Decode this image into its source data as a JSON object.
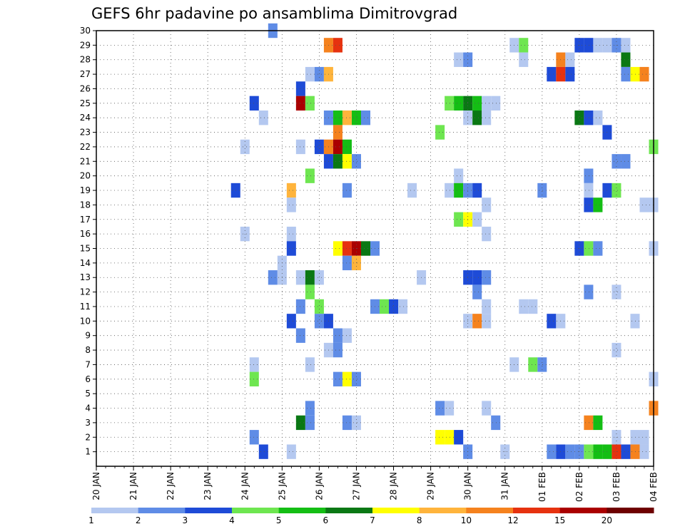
{
  "chart_data": {
    "type": "heatmap",
    "title": "GEFS 6hr padavine po ansamblima Dimitrovgrad",
    "y_tick_labels": [
      "1",
      "2",
      "3",
      "4",
      "5",
      "6",
      "7",
      "8",
      "9",
      "10",
      "11",
      "12",
      "13",
      "14",
      "15",
      "16",
      "17",
      "18",
      "19",
      "20",
      "21",
      "22",
      "23",
      "24",
      "25",
      "26",
      "27",
      "28",
      "29",
      "30"
    ],
    "x_tick_labels": [
      "20 JAN",
      "21 JAN",
      "22 JAN",
      "23 JAN",
      "24 JAN",
      "25 JAN",
      "26 JAN",
      "27 JAN",
      "28 JAN",
      "29 JAN",
      "30 JAN",
      "31 JAN",
      "01 FEB",
      "02 FEB",
      "03 FEB",
      "04 FEB"
    ],
    "x_range_steps": [
      0,
      60
    ],
    "y_range": [
      0,
      30
    ],
    "grid": true,
    "legend_position": "bottom",
    "legend_labels": [
      "1",
      "2",
      "3",
      "4",
      "5",
      "6",
      "7",
      "8",
      "10",
      "12",
      "15",
      "20"
    ],
    "colors": [
      "#b4c8f0",
      "#5f8ce6",
      "#1e4bd7",
      "#6ee650",
      "#14be14",
      "#0a7814",
      "#ffff00",
      "#ffb43c",
      "#f5821e",
      "#e6320f",
      "#aa0000",
      "#6e0000"
    ],
    "cells": [
      [
        19,
        30,
        2
      ],
      [
        25,
        29,
        9
      ],
      [
        26,
        29,
        10
      ],
      [
        45,
        29,
        1
      ],
      [
        46,
        29,
        4
      ],
      [
        52,
        29,
        3
      ],
      [
        53,
        29,
        3
      ],
      [
        54,
        29,
        1
      ],
      [
        55,
        29,
        1
      ],
      [
        56,
        29,
        2
      ],
      [
        57,
        29,
        1
      ],
      [
        39,
        28,
        1
      ],
      [
        40,
        28,
        2
      ],
      [
        46,
        28,
        1
      ],
      [
        50,
        28,
        9
      ],
      [
        51,
        28,
        1
      ],
      [
        57,
        28,
        6
      ],
      [
        23,
        27,
        1
      ],
      [
        24,
        27,
        2
      ],
      [
        25,
        27,
        8
      ],
      [
        49,
        27,
        3
      ],
      [
        50,
        27,
        10
      ],
      [
        51,
        27,
        3
      ],
      [
        57,
        27,
        2
      ],
      [
        58,
        27,
        7
      ],
      [
        59,
        27,
        9
      ],
      [
        22,
        26,
        3
      ],
      [
        17,
        25,
        3
      ],
      [
        22,
        25,
        11
      ],
      [
        23,
        25,
        4
      ],
      [
        38,
        25,
        4
      ],
      [
        39,
        25,
        5
      ],
      [
        40,
        25,
        6
      ],
      [
        41,
        25,
        5
      ],
      [
        42,
        25,
        1
      ],
      [
        43,
        25,
        1
      ],
      [
        18,
        24,
        1
      ],
      [
        25,
        24,
        2
      ],
      [
        26,
        24,
        5
      ],
      [
        27,
        24,
        8
      ],
      [
        28,
        24,
        5
      ],
      [
        29,
        24,
        2
      ],
      [
        40,
        24,
        1
      ],
      [
        41,
        24,
        6
      ],
      [
        42,
        24,
        1
      ],
      [
        52,
        24,
        6
      ],
      [
        53,
        24,
        3
      ],
      [
        54,
        24,
        1
      ],
      [
        26,
        23,
        9
      ],
      [
        37,
        23,
        4
      ],
      [
        55,
        23,
        3
      ],
      [
        16,
        22,
        1
      ],
      [
        22,
        22,
        1
      ],
      [
        24,
        22,
        3
      ],
      [
        25,
        22,
        9
      ],
      [
        26,
        22,
        11
      ],
      [
        27,
        22,
        5
      ],
      [
        60,
        22,
        4
      ],
      [
        25,
        21,
        3
      ],
      [
        26,
        21,
        6
      ],
      [
        27,
        21,
        7
      ],
      [
        28,
        21,
        2
      ],
      [
        56,
        21,
        2
      ],
      [
        57,
        21,
        2
      ],
      [
        23,
        20,
        4
      ],
      [
        39,
        20,
        1
      ],
      [
        53,
        20,
        2
      ],
      [
        15,
        19,
        3
      ],
      [
        21,
        19,
        8
      ],
      [
        27,
        19,
        2
      ],
      [
        34,
        19,
        1
      ],
      [
        38,
        19,
        1
      ],
      [
        39,
        19,
        5
      ],
      [
        40,
        19,
        2
      ],
      [
        41,
        19,
        3
      ],
      [
        48,
        19,
        2
      ],
      [
        53,
        19,
        1
      ],
      [
        55,
        19,
        3
      ],
      [
        56,
        19,
        4
      ],
      [
        21,
        18,
        1
      ],
      [
        42,
        18,
        1
      ],
      [
        53,
        18,
        3
      ],
      [
        54,
        18,
        5
      ],
      [
        59,
        18,
        1
      ],
      [
        60,
        18,
        1
      ],
      [
        39,
        17,
        4
      ],
      [
        40,
        17,
        7
      ],
      [
        41,
        17,
        1
      ],
      [
        16,
        16,
        1
      ],
      [
        21,
        16,
        1
      ],
      [
        42,
        16,
        1
      ],
      [
        21,
        15,
        3
      ],
      [
        26,
        15,
        7
      ],
      [
        27,
        15,
        10
      ],
      [
        28,
        15,
        11
      ],
      [
        29,
        15,
        6
      ],
      [
        30,
        15,
        2
      ],
      [
        52,
        15,
        3
      ],
      [
        53,
        15,
        4
      ],
      [
        54,
        15,
        2
      ],
      [
        60,
        15,
        1
      ],
      [
        20,
        14,
        1
      ],
      [
        27,
        14,
        2
      ],
      [
        28,
        14,
        8
      ],
      [
        19,
        13,
        2
      ],
      [
        20,
        13,
        1
      ],
      [
        22,
        13,
        1
      ],
      [
        23,
        13,
        6
      ],
      [
        24,
        13,
        1
      ],
      [
        35,
        13,
        1
      ],
      [
        40,
        13,
        3
      ],
      [
        41,
        13,
        3
      ],
      [
        42,
        13,
        2
      ],
      [
        23,
        12,
        4
      ],
      [
        41,
        12,
        2
      ],
      [
        53,
        12,
        2
      ],
      [
        56,
        12,
        1
      ],
      [
        22,
        11,
        2
      ],
      [
        24,
        11,
        4
      ],
      [
        30,
        11,
        2
      ],
      [
        31,
        11,
        4
      ],
      [
        32,
        11,
        3
      ],
      [
        33,
        11,
        1
      ],
      [
        42,
        11,
        1
      ],
      [
        46,
        11,
        1
      ],
      [
        47,
        11,
        1
      ],
      [
        21,
        10,
        3
      ],
      [
        24,
        10,
        2
      ],
      [
        25,
        10,
        3
      ],
      [
        40,
        10,
        1
      ],
      [
        41,
        10,
        9
      ],
      [
        42,
        10,
        1
      ],
      [
        49,
        10,
        3
      ],
      [
        50,
        10,
        1
      ],
      [
        58,
        10,
        1
      ],
      [
        22,
        9,
        2
      ],
      [
        26,
        9,
        2
      ],
      [
        27,
        9,
        1
      ],
      [
        25,
        8,
        1
      ],
      [
        26,
        8,
        2
      ],
      [
        56,
        8,
        1
      ],
      [
        17,
        7,
        1
      ],
      [
        23,
        7,
        1
      ],
      [
        45,
        7,
        1
      ],
      [
        47,
        7,
        4
      ],
      [
        48,
        7,
        2
      ],
      [
        17,
        6,
        4
      ],
      [
        26,
        6,
        2
      ],
      [
        27,
        6,
        7
      ],
      [
        28,
        6,
        2
      ],
      [
        60,
        6,
        1
      ],
      [
        23,
        4,
        2
      ],
      [
        37,
        4,
        2
      ],
      [
        38,
        4,
        1
      ],
      [
        42,
        4,
        1
      ],
      [
        60,
        4,
        9
      ],
      [
        22,
        3,
        6
      ],
      [
        23,
        3,
        2
      ],
      [
        27,
        3,
        2
      ],
      [
        28,
        3,
        1
      ],
      [
        43,
        3,
        2
      ],
      [
        53,
        3,
        9
      ],
      [
        54,
        3,
        5
      ],
      [
        17,
        2,
        2
      ],
      [
        37,
        2,
        7
      ],
      [
        38,
        2,
        7
      ],
      [
        39,
        2,
        3
      ],
      [
        56,
        2,
        1
      ],
      [
        58,
        2,
        1
      ],
      [
        59,
        2,
        1
      ],
      [
        18,
        1,
        3
      ],
      [
        21,
        1,
        1
      ],
      [
        40,
        1,
        2
      ],
      [
        44,
        1,
        1
      ],
      [
        49,
        1,
        2
      ],
      [
        50,
        1,
        3
      ],
      [
        51,
        1,
        2
      ],
      [
        52,
        1,
        2
      ],
      [
        53,
        1,
        4
      ],
      [
        54,
        1,
        5
      ],
      [
        55,
        1,
        5
      ],
      [
        56,
        1,
        10
      ],
      [
        57,
        1,
        3
      ],
      [
        58,
        1,
        9
      ],
      [
        59,
        1,
        1
      ]
    ]
  }
}
